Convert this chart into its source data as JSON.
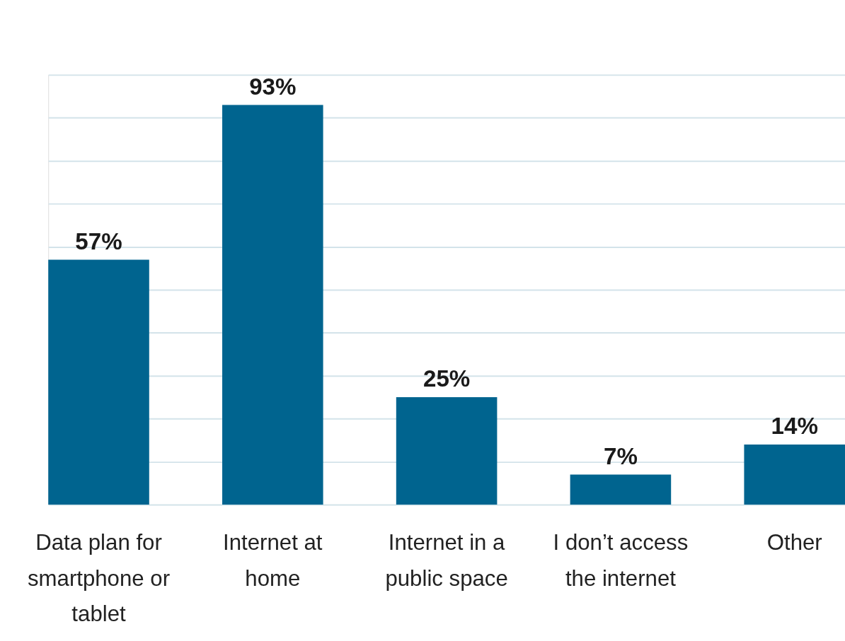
{
  "chart_data": {
    "type": "bar",
    "categories": [
      "Data plan for smartphone or tablet",
      "Internet at home",
      "Internet in a public space",
      "I don’t access the internet",
      "Other"
    ],
    "values": [
      57,
      93,
      25,
      7,
      14
    ],
    "value_labels": [
      "57%",
      "93%",
      "25%",
      "7%",
      "14%"
    ],
    "color": "#00648f",
    "ylim": [
      0,
      100
    ],
    "yticks": [
      {
        "value": 0,
        "label": null
      },
      {
        "value": 10,
        "label": null
      },
      {
        "value": 20,
        "label": null
      },
      {
        "value": 30,
        "label": null
      },
      {
        "value": 40,
        "label": null
      },
      {
        "value": 50,
        "label": null
      },
      {
        "value": 60,
        "label": null
      },
      {
        "value": 70,
        "label": null
      },
      {
        "value": 80,
        "label": null
      },
      {
        "value": 90,
        "label": null
      },
      {
        "value": 100,
        "label": null
      }
    ],
    "grid": "y",
    "tick_labels": "x"
  }
}
